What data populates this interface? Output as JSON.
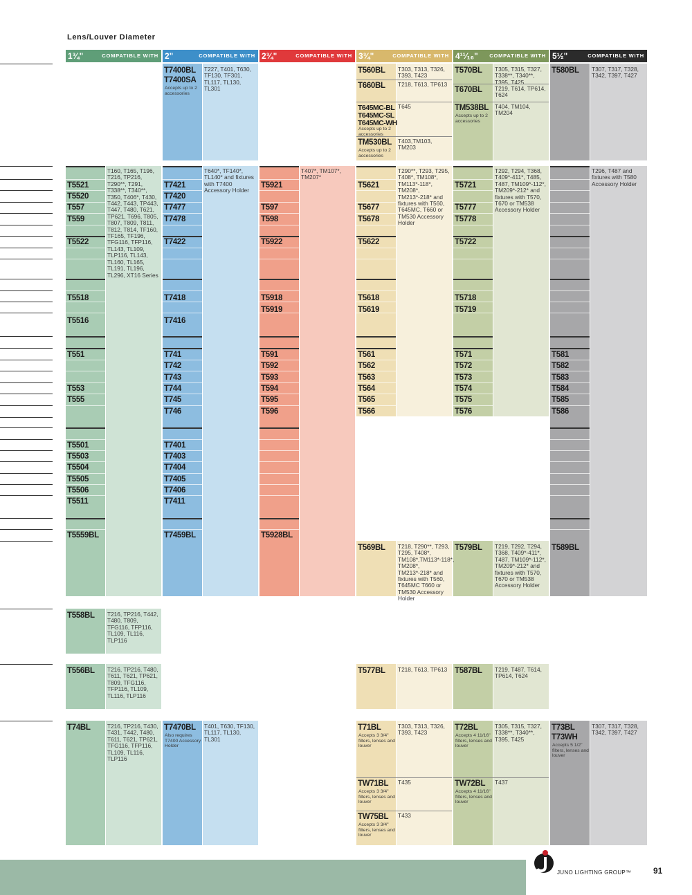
{
  "header": {
    "title": "Lens/Louver Diameter"
  },
  "columns": [
    {
      "diameter": "1¾\"",
      "compat_label": "COMPATIBLE WITH"
    },
    {
      "diameter": "2\"",
      "compat_label": "COMPATIBLE WITH"
    },
    {
      "diameter": "2¾\"",
      "compat_label": "COMPATIBLE WITH"
    },
    {
      "diameter": "3¾\"",
      "compat_label": "COMPATIBLE WITH"
    },
    {
      "diameter": "4¹¹⁄₁₆\"",
      "compat_label": "COMPATIBLE WITH"
    },
    {
      "diameter": "5½\"",
      "compat_label": "COMPATIBLE WITH"
    }
  ],
  "sections": [
    {
      "cells": [
        null,
        [
          {
            "parts": [
              "T7400BL",
              "T7400SA"
            ],
            "note": "Accepts up to 2 accessories",
            "compat": "T227, T401, T630, TF130, TF301, TL117, TL130, TL301"
          }
        ],
        null,
        [
          {
            "parts": [
              "T560BL"
            ],
            "compat": "T303, T313, T326, T393, T423"
          },
          {
            "parts": [
              "T660BL"
            ],
            "compat": "T218, T613, TP613"
          },
          {
            "parts": [
              "T645MC-BL",
              "T645MC-SL",
              "T645MC-WH"
            ],
            "note": "Accepts up to 2 accessories",
            "compat": "T645"
          },
          {
            "parts": [
              "TM530BL"
            ],
            "note": "Accepts up to 2 accessories",
            "compat": "T403,TM103, TM203"
          }
        ],
        [
          {
            "parts": [
              "T570BL"
            ],
            "compat": "T305, T315, T327, T338**, T340**, T395, T425"
          },
          {
            "parts": [
              "T670BL"
            ],
            "compat": "T219, T614, TP614, T624"
          },
          {
            "parts": [
              "TM538BL"
            ],
            "note": "Accepts up to 2 accessories",
            "compat": "T404, TM104, TM204"
          }
        ],
        [
          {
            "parts": [
              "T580BL"
            ],
            "compat": "T307, T317, T328, T342, T397, T427"
          }
        ]
      ]
    },
    {
      "cells": [
        {
          "parts": [
            "T5521",
            "T5520",
            "T557",
            "T559",
            "T5522",
            "T5518",
            null,
            "T5516",
            "T551",
            null,
            null,
            "T553",
            "T555",
            null,
            "T5501",
            "T5503",
            "T5504",
            "T5505",
            "T5506",
            "T5511",
            "T5559BL"
          ],
          "compat": "T160, T165, T196, T216, TP216, T290**, T291, T338**, T340**, T350, T406*, T430, T442, T443, TP443, T447, T480, T621, TP621, T696, T805, T807, T809, T811, T812, T814, TF160, TF165, TF196, TFG116, TFP116, TL143, TL109, TLP116, TL143, TL160, TL165, TL191, TL196, TL296, XT16 Series"
        },
        {
          "parts": [
            "T7421",
            "T7420",
            "T7477",
            "T7478",
            "T7422",
            "T7418",
            null,
            "T7416",
            "T741",
            "T742",
            "T743",
            "T744",
            "T745",
            "T746",
            "T7401",
            "T7403",
            "T7404",
            "T7405",
            "T7406",
            "T7411",
            "T7459BL"
          ],
          "compat": "T640*, TF140*, TL140* and fixtures with T7400 Accessory Holder"
        },
        {
          "parts": [
            "T5921",
            null,
            "T597",
            "T598",
            "T5922",
            "T5918",
            "T5919",
            null,
            "T591",
            "T592",
            "T593",
            "T594",
            "T595",
            "T596",
            null,
            null,
            null,
            null,
            null,
            null,
            "T5928BL"
          ],
          "compat": "T407*, TM107*, TM207*"
        },
        {
          "parts": [
            "T5621",
            null,
            "T5677",
            "T5678",
            "T5622",
            "T5618",
            "T5619",
            null,
            "T561",
            "T562",
            "T563",
            "T564",
            "T565",
            "T566",
            null,
            null,
            null,
            null,
            null,
            null,
            null
          ],
          "compat": "T290**, T293, T295, T408*, TM108*, TM113*-118*, TM208*, TM213*-218* and fixtures with T560, T645MC, T660 or TM530 Accessory Holder"
        },
        {
          "parts": [
            "T5721",
            null,
            "T5777",
            "T5778",
            "T5722",
            "T5718",
            "T5719",
            null,
            "T571",
            "T572",
            "T573",
            "T574",
            "T575",
            "T576",
            null,
            null,
            null,
            null,
            null,
            null,
            null
          ],
          "compat": "T292, T294, T368, T409*-411*, T485, T487, TM109*-112*, TM209*-212* and fixtures with T570, T670 or TM538 Accessory Holder"
        },
        {
          "parts": [
            null,
            null,
            null,
            null,
            null,
            null,
            null,
            null,
            "T581",
            "T582",
            "T583",
            "T584",
            "T585",
            "T586",
            null,
            null,
            null,
            null,
            null,
            null,
            null
          ],
          "compat": "T296, T487 and fixtures with T580 Accessory Holder"
        }
      ]
    },
    {
      "cells": [
        null,
        null,
        null,
        [
          {
            "parts": [
              "T569BL"
            ],
            "compat": "T218, T290**, T293, T295, T408*, TM108*,TM113*-118*, TM208*, TM213*-218* and fixtures with T560, T645MC T660 or TM530 Accessory Holder"
          }
        ],
        [
          {
            "parts": [
              "T579BL"
            ],
            "compat": "T219, T292, T294, T368, T409*-411*, T487, TM109*-112*, TM209*-212* and fixtures with T570, T670 or TM538 Accessory Holder"
          }
        ],
        [
          {
            "parts": [
              "T589BL"
            ]
          }
        ]
      ]
    },
    {
      "cells": [
        [
          {
            "parts": [
              "T558BL"
            ],
            "compat": "T216, TP216, T442, T480, T809, TFG116, TFP116, TL109, TL116, TLP116"
          }
        ],
        null,
        null,
        null,
        null,
        null
      ]
    },
    {
      "cells": [
        [
          {
            "parts": [
              "T556BL"
            ],
            "compat": "T216, TP216, T480, T611, T621, TP621, T809, TFG116, TFP116, TL109, TL116, TLP116"
          }
        ],
        null,
        null,
        [
          {
            "parts": [
              "T577BL"
            ],
            "compat": "T218, T613, TP613"
          }
        ],
        [
          {
            "parts": [
              "T587BL"
            ],
            "compat": "T219, T487, T614, TP614, T624"
          }
        ],
        null
      ]
    },
    {
      "cells": [
        [
          {
            "parts": [
              "T74BL"
            ],
            "compat": "T216, TP216, T430, T431, T442, T480, T611, T621, TP621, TFG116, TFP116, TL109, TL116, TLP116"
          }
        ],
        [
          {
            "parts": [
              "T7470BL"
            ],
            "note": "Also requires T7400 Accessory Holder",
            "compat": "T401, T630, TF130, TL117, TL130, TL301"
          }
        ],
        null,
        [
          {
            "parts": [
              "T71BL"
            ],
            "note": "Accepts 3 3/4\" filters, lenses and louver",
            "compat": "T303, T313, T326, T393, T423"
          },
          {
            "parts": [
              "TW71BL"
            ],
            "note": "Accepts 3 3/4\" filters, lenses and louver",
            "compat": "T435"
          },
          {
            "parts": [
              "TW75BL"
            ],
            "note": "Accepts 3 3/4\" filters, lenses and louver",
            "compat": "T433"
          }
        ],
        [
          {
            "parts": [
              "T72BL"
            ],
            "note": "Accepts 4 11/16\" filters, lenses and louver",
            "compat": "T305, T315, T327, T338**, T340**, T395, T425"
          },
          {
            "parts": [
              "TW72BL"
            ],
            "note": "Accepts 4 11/16\" filters, lenses and louver",
            "compat": "T437"
          }
        ],
        [
          {
            "parts": [
              "T73BL",
              "T73WH"
            ],
            "note": "Accepts 5 1/2\" filters, lenses and louver",
            "compat": "T307, T317, T328, T342, T397, T427"
          }
        ]
      ]
    }
  ],
  "footer": {
    "brand": "JUNO LIGHTING GROUP™",
    "page": "91"
  }
}
